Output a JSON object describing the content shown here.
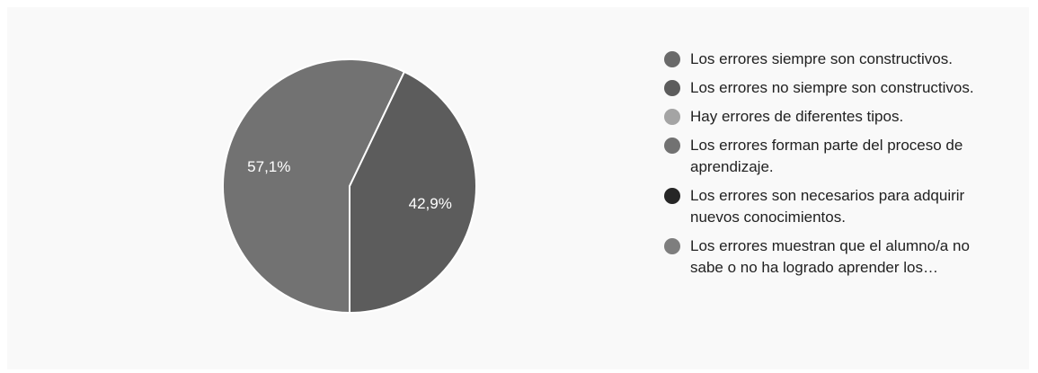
{
  "chart_data": {
    "type": "pie",
    "title": "",
    "start_angle_deg": 90,
    "slices": [
      {
        "label": "Los errores siempre son constructivos.",
        "value": 0,
        "value_label": "",
        "color": "#6a6a6a"
      },
      {
        "label": "Los errores no siempre son constructivos.",
        "value": 42.9,
        "value_label": "42,9%",
        "color": "#5c5c5c"
      },
      {
        "label": "Hay errores de diferentes tipos.",
        "value": 0,
        "value_label": "",
        "color": "#a4a4a4"
      },
      {
        "label": "Los errores forman parte del proceso de aprendizaje.",
        "value": 57.1,
        "value_label": "57,1%",
        "color": "#727272"
      },
      {
        "label": "Los errores son necesarios para adquirir nuevos conocimientos.",
        "value": 0,
        "value_label": "",
        "color": "#262626"
      },
      {
        "label": "Los errores muestran que el alumno/a no sabe o no ha logrado aprender los…",
        "value": 0,
        "value_label": "",
        "color": "#7e7e7e"
      }
    ],
    "legend_position": "right"
  }
}
